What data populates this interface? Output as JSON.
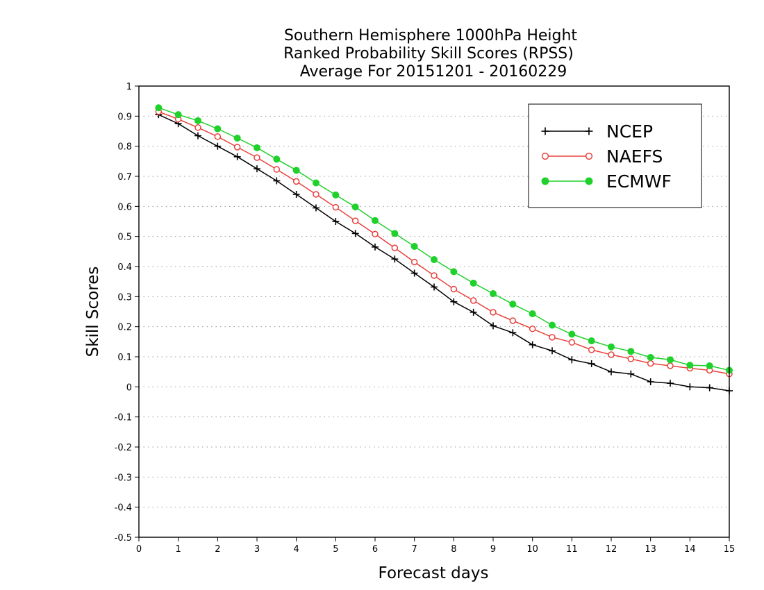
{
  "chart_data": {
    "type": "line",
    "title": [
      "Southern Hemisphere 1000hPa Height",
      "Ranked Probability Skill Scores (RPSS)",
      "Average For 20151201 - 20160229"
    ],
    "xlabel": "Forecast days",
    "ylabel": "Skill Scores",
    "xlim": [
      0,
      15
    ],
    "ylim": [
      -0.5,
      1
    ],
    "xticks": [
      0,
      1,
      2,
      3,
      4,
      5,
      6,
      7,
      8,
      9,
      10,
      11,
      12,
      13,
      14,
      15
    ],
    "yticks": [
      -0.5,
      -0.4,
      -0.3,
      -0.2,
      -0.1,
      0,
      0.1,
      0.2,
      0.3,
      0.4,
      0.5,
      0.6,
      0.7,
      0.8,
      0.9,
      1
    ],
    "ytick_labels": [
      "-0.5",
      "-0.4",
      "-0.3",
      "-0.2",
      "-0.1",
      "0",
      "0.1",
      "0.2",
      "0.3",
      "0.4",
      "0.5",
      "0.6",
      "0.7",
      "0.8",
      "0.9",
      "1"
    ],
    "grid": "horizontal dotted",
    "legend_position": "top-right",
    "x": [
      0.5,
      1,
      1.5,
      2,
      2.5,
      3,
      3.5,
      4,
      4.5,
      5,
      5.5,
      6,
      6.5,
      7,
      7.5,
      8,
      8.5,
      9,
      9.5,
      10,
      10.5,
      11,
      11.5,
      12,
      12.5,
      13,
      13.5,
      14,
      14.5,
      15
    ],
    "series": [
      {
        "name": "NCEP",
        "color": "#000000",
        "marker": "plus",
        "values": [
          0.905,
          0.875,
          0.835,
          0.8,
          0.765,
          0.725,
          0.685,
          0.64,
          0.595,
          0.55,
          0.51,
          0.465,
          0.425,
          0.378,
          0.332,
          0.283,
          0.248,
          0.203,
          0.18,
          0.14,
          0.12,
          0.09,
          0.077,
          0.05,
          0.043,
          0.017,
          0.012,
          0.0,
          -0.003,
          -0.013
        ]
      },
      {
        "name": "NAEFS",
        "color": "#e8413c",
        "marker": "open-circle",
        "values": [
          0.915,
          0.89,
          0.862,
          0.832,
          0.797,
          0.762,
          0.723,
          0.683,
          0.64,
          0.597,
          0.552,
          0.508,
          0.462,
          0.415,
          0.37,
          0.325,
          0.287,
          0.248,
          0.22,
          0.193,
          0.165,
          0.148,
          0.123,
          0.107,
          0.093,
          0.078,
          0.07,
          0.062,
          0.055,
          0.043
        ]
      },
      {
        "name": "ECMWF",
        "color": "#1fd12a",
        "marker": "filled-circle",
        "values": [
          0.928,
          0.905,
          0.885,
          0.858,
          0.827,
          0.795,
          0.757,
          0.72,
          0.678,
          0.638,
          0.598,
          0.553,
          0.51,
          0.467,
          0.423,
          0.383,
          0.345,
          0.31,
          0.275,
          0.243,
          0.205,
          0.175,
          0.153,
          0.133,
          0.118,
          0.098,
          0.09,
          0.072,
          0.07,
          0.055
        ]
      }
    ]
  }
}
